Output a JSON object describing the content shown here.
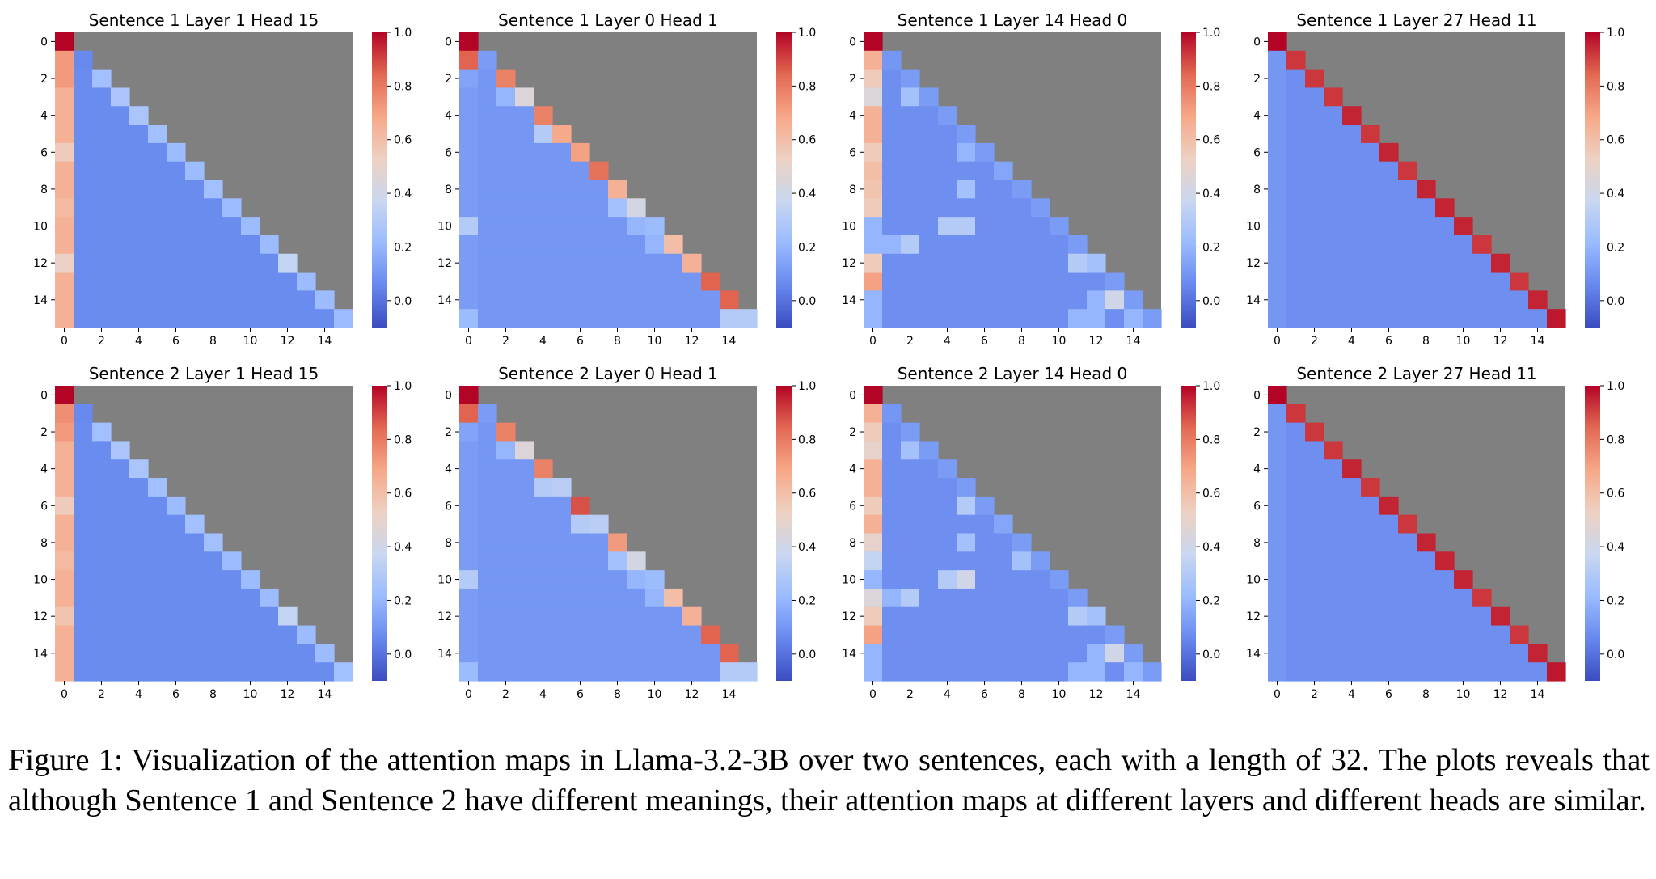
{
  "caption": "Figure 1: Visualization of the attention maps in Llama-3.2-3B over two sentences, each with a length of 32. The plots reveals that although Sentence 1 and Sentence 2 have different meanings, their attention maps at different layers and different heads are similar.",
  "colormap": {
    "name": "coolwarm",
    "stops": [
      "#3b4cc0",
      "#6788ee",
      "#9abbff",
      "#c9d7f0",
      "#edd1c2",
      "#f7a889",
      "#e26952",
      "#b40426"
    ],
    "masked_color": "#808080",
    "vmin": -0.1,
    "vmax": 1.0
  },
  "colorbar_ticks": [
    "0.0",
    "0.2",
    "0.4",
    "0.6",
    "0.8",
    "1.0"
  ],
  "colorbar_tick_values": [
    0.0,
    0.2,
    0.4,
    0.6,
    0.8,
    1.0
  ],
  "x_ticks": [
    "0",
    "2",
    "4",
    "6",
    "8",
    "10",
    "12",
    "14"
  ],
  "y_ticks": [
    "0",
    "2",
    "4",
    "6",
    "8",
    "10",
    "12",
    "14"
  ],
  "tick_values": [
    0,
    2,
    4,
    6,
    8,
    10,
    12,
    14
  ],
  "n_tokens": 16,
  "chart_data": [
    {
      "type": "heatmap",
      "title": "Sentence 1 Layer 1 Head 15",
      "mask": "upper-triangle",
      "first_column": [
        1.0,
        0.72,
        0.72,
        0.65,
        0.65,
        0.65,
        0.55,
        0.65,
        0.65,
        0.62,
        0.65,
        0.65,
        0.52,
        0.65,
        0.65,
        0.65
      ],
      "diagonal": [
        1.0,
        0.06,
        0.24,
        0.27,
        0.27,
        0.24,
        0.22,
        0.22,
        0.24,
        0.22,
        0.22,
        0.22,
        0.35,
        0.22,
        0.22,
        0.22
      ],
      "background": 0.07,
      "highlights": [
        [
          15,
          15,
          0.1
        ]
      ]
    },
    {
      "type": "heatmap",
      "title": "Sentence 1 Layer 0 Head 1",
      "mask": "upper-triangle",
      "first_column": [
        1.0,
        0.85,
        0.14,
        0.12,
        0.12,
        0.12,
        0.12,
        0.12,
        0.12,
        0.12,
        0.3,
        0.12,
        0.12,
        0.12,
        0.12,
        0.22
      ],
      "diagonal": [
        1.0,
        0.12,
        0.78,
        0.45,
        0.78,
        0.68,
        0.7,
        0.82,
        0.65,
        0.42,
        0.22,
        0.6,
        0.65,
        0.85,
        0.85,
        0.3
      ],
      "background": 0.1,
      "highlights": [
        [
          3,
          2,
          0.2
        ],
        [
          5,
          4,
          0.3
        ],
        [
          5,
          5,
          0.3
        ],
        [
          9,
          8,
          0.25
        ],
        [
          10,
          9,
          0.2
        ],
        [
          11,
          10,
          0.2
        ],
        [
          15,
          14,
          0.3
        ]
      ]
    },
    {
      "type": "heatmap",
      "title": "Sentence 1 Layer 14 Head 0",
      "mask": "upper-triangle",
      "first_column": [
        1.0,
        0.65,
        0.55,
        0.45,
        0.65,
        0.65,
        0.55,
        0.6,
        0.58,
        0.55,
        0.2,
        0.2,
        0.55,
        0.7,
        0.2,
        0.2
      ],
      "diagonal": [
        1.0,
        0.1,
        0.12,
        0.12,
        0.12,
        0.12,
        0.12,
        0.15,
        0.12,
        0.12,
        0.12,
        0.12,
        0.25,
        0.12,
        0.12,
        0.12
      ],
      "background": 0.08,
      "highlights": [
        [
          2,
          2,
          0.3
        ],
        [
          2,
          3,
          0.38
        ],
        [
          3,
          2,
          0.25
        ],
        [
          3,
          3,
          0.25
        ],
        [
          6,
          5,
          0.2
        ],
        [
          8,
          5,
          0.25
        ],
        [
          10,
          4,
          0.3
        ],
        [
          10,
          5,
          0.3
        ],
        [
          11,
          1,
          0.2
        ],
        [
          11,
          2,
          0.3
        ],
        [
          12,
          11,
          0.3
        ],
        [
          14,
          13,
          0.4
        ],
        [
          14,
          12,
          0.2
        ],
        [
          15,
          11,
          0.2
        ],
        [
          15,
          12,
          0.2
        ],
        [
          15,
          14,
          0.2
        ]
      ]
    },
    {
      "type": "heatmap",
      "title": "Sentence 1 Layer 27 Head 11",
      "mask": "upper-triangle",
      "first_column": [
        1.0,
        0.1,
        0.1,
        0.1,
        0.1,
        0.1,
        0.1,
        0.1,
        0.1,
        0.1,
        0.1,
        0.1,
        0.1,
        0.1,
        0.1,
        0.1
      ],
      "diagonal": [
        1.0,
        0.92,
        0.92,
        0.92,
        0.95,
        0.92,
        0.95,
        0.92,
        0.95,
        0.95,
        0.95,
        0.92,
        0.95,
        0.92,
        0.95,
        0.97
      ],
      "background": 0.08,
      "highlights": []
    },
    {
      "type": "heatmap",
      "title": "Sentence 2 Layer 1 Head 15",
      "mask": "upper-triangle",
      "first_column": [
        1.0,
        0.75,
        0.72,
        0.65,
        0.65,
        0.65,
        0.55,
        0.65,
        0.65,
        0.62,
        0.65,
        0.65,
        0.58,
        0.65,
        0.65,
        0.65
      ],
      "diagonal": [
        1.0,
        0.06,
        0.24,
        0.27,
        0.27,
        0.24,
        0.22,
        0.24,
        0.24,
        0.22,
        0.22,
        0.22,
        0.35,
        0.22,
        0.22,
        0.24
      ],
      "background": 0.07,
      "highlights": []
    },
    {
      "type": "heatmap",
      "title": "Sentence 2 Layer 0 Head 1",
      "mask": "upper-triangle",
      "first_column": [
        1.0,
        0.85,
        0.14,
        0.12,
        0.12,
        0.12,
        0.12,
        0.12,
        0.12,
        0.12,
        0.3,
        0.12,
        0.12,
        0.12,
        0.12,
        0.22
      ],
      "diagonal": [
        1.0,
        0.12,
        0.78,
        0.45,
        0.78,
        0.32,
        0.88,
        0.32,
        0.72,
        0.42,
        0.22,
        0.6,
        0.65,
        0.85,
        0.85,
        0.3
      ],
      "background": 0.1,
      "highlights": [
        [
          3,
          2,
          0.2
        ],
        [
          5,
          4,
          0.3
        ],
        [
          7,
          6,
          0.3
        ],
        [
          9,
          8,
          0.25
        ],
        [
          10,
          9,
          0.2
        ],
        [
          11,
          10,
          0.2
        ],
        [
          15,
          14,
          0.3
        ]
      ]
    },
    {
      "type": "heatmap",
      "title": "Sentence 2 Layer 14 Head 0",
      "mask": "upper-triangle",
      "first_column": [
        1.0,
        0.65,
        0.55,
        0.5,
        0.65,
        0.65,
        0.55,
        0.65,
        0.5,
        0.35,
        0.2,
        0.45,
        0.55,
        0.7,
        0.2,
        0.2
      ],
      "diagonal": [
        1.0,
        0.1,
        0.12,
        0.12,
        0.12,
        0.12,
        0.12,
        0.15,
        0.12,
        0.12,
        0.12,
        0.12,
        0.25,
        0.12,
        0.12,
        0.12
      ],
      "background": 0.08,
      "highlights": [
        [
          2,
          2,
          0.3
        ],
        [
          2,
          3,
          0.38
        ],
        [
          3,
          2,
          0.25
        ],
        [
          3,
          3,
          0.25
        ],
        [
          6,
          5,
          0.3
        ],
        [
          8,
          5,
          0.25
        ],
        [
          10,
          4,
          0.3
        ],
        [
          10,
          5,
          0.4
        ],
        [
          9,
          8,
          0.25
        ],
        [
          11,
          1,
          0.2
        ],
        [
          11,
          2,
          0.3
        ],
        [
          12,
          11,
          0.3
        ],
        [
          14,
          13,
          0.4
        ],
        [
          14,
          12,
          0.2
        ],
        [
          15,
          11,
          0.2
        ],
        [
          15,
          12,
          0.2
        ],
        [
          15,
          14,
          0.2
        ]
      ]
    },
    {
      "type": "heatmap",
      "title": "Sentence 2 Layer 27 Head 11",
      "mask": "upper-triangle",
      "first_column": [
        1.0,
        0.1,
        0.1,
        0.1,
        0.1,
        0.1,
        0.1,
        0.1,
        0.1,
        0.1,
        0.1,
        0.1,
        0.1,
        0.1,
        0.1,
        0.1
      ],
      "diagonal": [
        1.0,
        0.92,
        0.92,
        0.92,
        0.95,
        0.92,
        0.95,
        0.92,
        0.95,
        0.95,
        0.95,
        0.92,
        0.95,
        0.92,
        0.95,
        0.97
      ],
      "background": 0.08,
      "highlights": []
    }
  ]
}
